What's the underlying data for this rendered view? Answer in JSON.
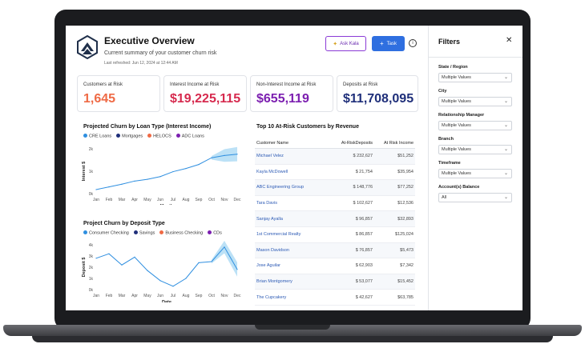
{
  "header": {
    "title": "Executive Overview",
    "subtitle": "Current summary of your customer churn risk",
    "refreshed": "Last refreshed: Jun 12, 2024 at 12:44 AM",
    "ask_kala": "Ask Kala",
    "task": "Task"
  },
  "kpis": [
    {
      "label": "Customers at Risk",
      "value": "1,645",
      "color": "#ef6a45"
    },
    {
      "label": "Interest Income at Risk",
      "value": "$19,225,115",
      "color": "#d62a4e"
    },
    {
      "label": "Non-Interest Income at Risk",
      "value": "$655,119",
      "color": "#7c1fb0"
    },
    {
      "label": "Deposits at Risk",
      "value": "$11,708,095",
      "color": "#1f2f7a"
    }
  ],
  "churn_loan": {
    "title": "Projected Churn by Loan Type (Interest Income)",
    "legend": [
      {
        "label": "CRE Loans",
        "color": "#2f8fe0"
      },
      {
        "label": "Mortgages",
        "color": "#1f2f7a"
      },
      {
        "label": "HELOCS",
        "color": "#ef6a45"
      },
      {
        "label": "ADC Loans",
        "color": "#7c1fb0"
      }
    ]
  },
  "churn_deposit": {
    "title": "Project Churn by Deposit Type",
    "legend": [
      {
        "label": "Consumer Checking",
        "color": "#2f8fe0"
      },
      {
        "label": "Savings",
        "color": "#1f2f7a"
      },
      {
        "label": "Business Checking",
        "color": "#ef6a45"
      },
      {
        "label": "CDs",
        "color": "#7c1fb0"
      }
    ]
  },
  "chart_data": [
    {
      "type": "line",
      "title": "Projected Churn by Loan Type (Interest Income)",
      "xlabel": "Month",
      "ylabel": "Interest $",
      "categories": [
        "Jan",
        "Feb",
        "Mar",
        "Apr",
        "May",
        "Jun",
        "Jul",
        "Aug",
        "Sep",
        "Oct",
        "Nov",
        "Dec"
      ],
      "y_ticks": [
        "0k",
        "1k",
        "2k"
      ],
      "ylim": [
        0,
        2000
      ],
      "series": [
        {
          "values": [
            180,
            300,
            420,
            560,
            640,
            760,
            980,
            1120,
            1300,
            1600,
            1700,
            1760
          ]
        }
      ]
    },
    {
      "type": "line",
      "title": "Project Churn by Deposit Type",
      "xlabel": "Date",
      "ylabel": "Deposit $",
      "categories": [
        "Jan",
        "Feb",
        "Mar",
        "Apr",
        "May",
        "Jun",
        "Jul",
        "Aug",
        "Sep",
        "Oct",
        "Nov",
        "Dec"
      ],
      "y_ticks": [
        "0k",
        "1k",
        "2k",
        "3k",
        "4k"
      ],
      "ylim": [
        0,
        4000
      ],
      "series": [
        {
          "values": [
            2800,
            3200,
            2200,
            2900,
            1700,
            800,
            300,
            1000,
            2400,
            2500,
            3800,
            1800
          ]
        }
      ]
    }
  ],
  "top10": {
    "title": "Top 10 At-Risk Customers by Revenue",
    "columns": [
      "Customer Name",
      "At-RiskDeposits",
      "At Risk Income"
    ],
    "rows": [
      [
        "Michael Velez",
        "$ 232,627",
        "$51,252"
      ],
      [
        "Kayla McDowell",
        "$ 21,754",
        "$35,954"
      ],
      [
        "ABC Engineering Group",
        "$ 148,776",
        "$77,252"
      ],
      [
        "Tara Davis",
        "$ 102,627",
        "$12,536"
      ],
      [
        "Sanjay Ayalla",
        "$ 96,857",
        "$32,893"
      ],
      [
        "1st Commercial Realty",
        "$ 86,857",
        "$125,024"
      ],
      [
        "Mason Davidson",
        "$ 76,857",
        "$5,473"
      ],
      [
        "Jose Aguilar",
        "$ 62,903",
        "$7,342"
      ],
      [
        "Brian Montgomery",
        "$ 53,077",
        "$15,452"
      ],
      [
        "The Cupcakery",
        "$ 42,627",
        "$63,785"
      ]
    ]
  },
  "filters": {
    "title": "Filters",
    "items": [
      {
        "label": "State / Region",
        "value": "Multiple Values"
      },
      {
        "label": "City",
        "value": "Multiple Values"
      },
      {
        "label": "Relationship Manager",
        "value": "Multiple Values"
      },
      {
        "label": "Branch",
        "value": "Multiple Values"
      },
      {
        "label": "Timeframe",
        "value": "Multiple Values"
      },
      {
        "label": "Account(s) Balance",
        "value": "All"
      }
    ]
  }
}
